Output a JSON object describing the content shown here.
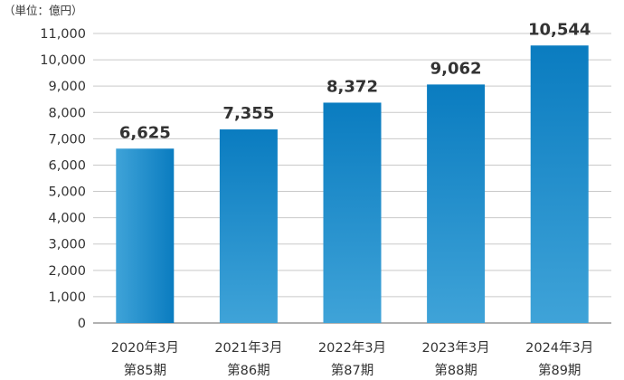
{
  "chart_data": {
    "type": "bar",
    "unit_label": "（単位：億円）",
    "categories": [
      [
        "2020年3月",
        "第85期"
      ],
      [
        "2021年3月",
        "第86期"
      ],
      [
        "2022年3月",
        "第87期"
      ],
      [
        "2023年3月",
        "第88期"
      ],
      [
        "2024年3月",
        "第89期"
      ]
    ],
    "values": [
      6625,
      7355,
      8372,
      9062,
      10544
    ],
    "value_labels": [
      "6,625",
      "7,355",
      "8,372",
      "9,062",
      "10,544"
    ],
    "yticks": [
      0,
      1000,
      2000,
      3000,
      4000,
      5000,
      6000,
      7000,
      8000,
      9000,
      10000,
      11000
    ],
    "ytick_labels": [
      "0",
      "1,000",
      "2,000",
      "3,000",
      "4,000",
      "5,000",
      "6,000",
      "7,000",
      "8,000",
      "9,000",
      "10,000",
      "11,000"
    ],
    "ylim": [
      0,
      11000
    ],
    "grid": true,
    "colors": {
      "bar_light": "#3fa3d8",
      "bar_dark": "#0a7cc0",
      "grid": "#c9c9c9"
    }
  }
}
